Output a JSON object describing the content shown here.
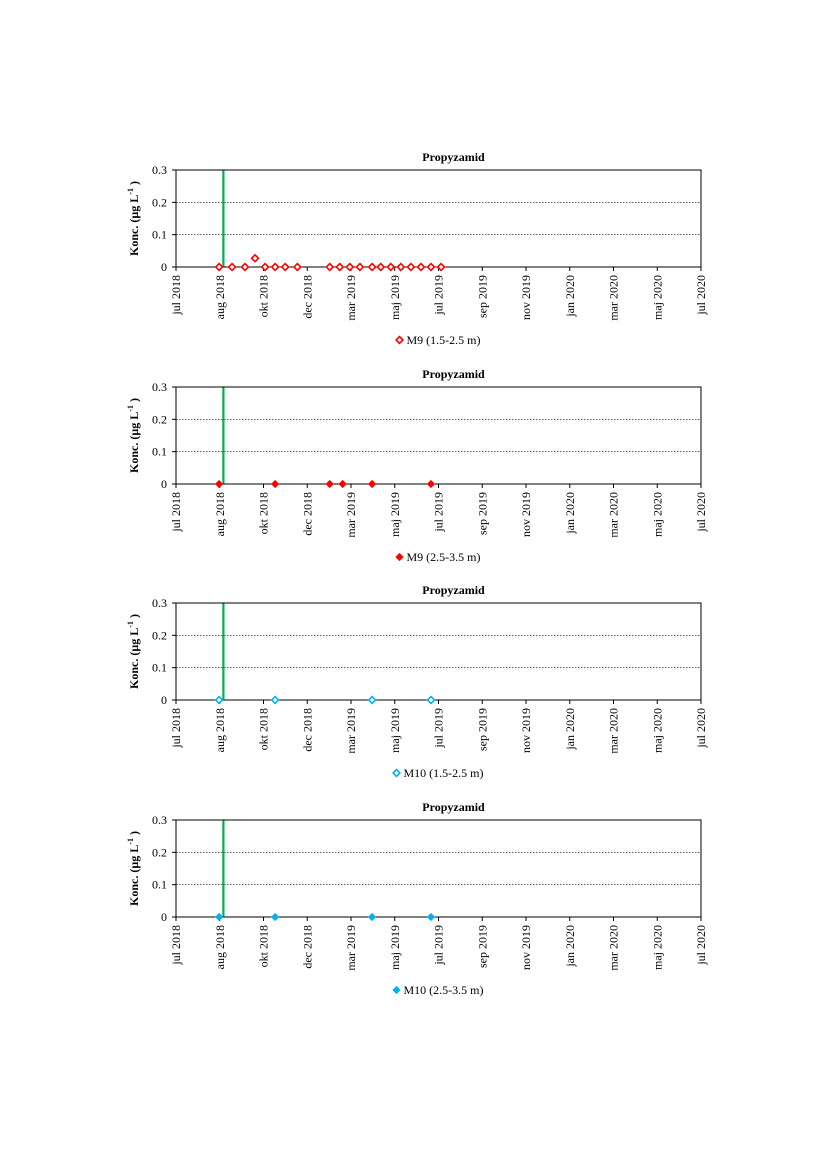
{
  "chart_data": [
    {
      "type": "scatter",
      "title": "Propyzamid",
      "ylabel": "Konc. (µg L",
      "ylabel_sup": "-1",
      "ylabel_end": ")",
      "ylim": [
        0,
        0.3
      ],
      "yticks": [
        "0",
        "0.1",
        "0.2",
        "0.3"
      ],
      "xlim": [
        "2018-06-01",
        "2020-06-01"
      ],
      "xticks": [
        "jul 2018",
        "aug 2018",
        "okt 2018",
        "dec 2018",
        "mar 2019",
        "maj 2019",
        "jul 2019",
        "sep 2019",
        "nov 2019",
        "jan 2020",
        "mar 2020",
        "maj 2020",
        "jul 2020"
      ],
      "grid": "horizontal dotted",
      "marker_line_date": "2018-08-06",
      "marker_line_color": "#00b050",
      "series": [
        {
          "name": "M9 (1.5-2.5 m)",
          "color": "#ff0000",
          "marker": "diamond-open",
          "x": [
            "2018-07-31",
            "2018-08-18",
            "2018-09-05",
            "2018-09-19",
            "2018-10-03",
            "2018-10-17",
            "2018-10-31",
            "2018-11-17",
            "2019-01-01",
            "2019-01-15",
            "2019-01-29",
            "2019-02-12",
            "2019-02-29",
            "2019-03-13",
            "2019-03-27",
            "2019-04-10",
            "2019-04-24",
            "2019-05-08",
            "2019-05-22",
            "2019-06-05"
          ],
          "y": [
            0,
            0,
            0,
            0.027,
            0,
            0,
            0,
            0,
            0,
            0,
            0,
            0,
            0,
            0,
            0,
            0,
            0,
            0,
            0,
            0
          ]
        },
        {
          "name": "M9 (2.5-3.5 m)",
          "color": "#ff0000",
          "marker": "diamond-filled",
          "x": [
            "2018-07-31",
            "2018-10-17",
            "2019-01-01",
            "2019-01-19",
            "2019-02-29",
            "2019-05-22"
          ],
          "y": [
            0,
            0,
            0,
            0,
            0,
            0
          ]
        },
        {
          "name": "M10 (1.5-2.5 m)",
          "color": "#00b0f0",
          "marker": "diamond-open",
          "x": [
            "2018-07-31",
            "2018-10-17",
            "2019-02-29",
            "2019-05-22"
          ],
          "y": [
            0,
            0,
            0,
            0
          ]
        },
        {
          "name": "M10 (2.5-3.5 m)",
          "color": "#00b0f0",
          "marker": "diamond-filled",
          "x": [
            "2018-07-31",
            "2018-10-17",
            "2019-02-29",
            "2019-05-22"
          ],
          "y": [
            0,
            0,
            0,
            0
          ]
        }
      ]
    }
  ]
}
